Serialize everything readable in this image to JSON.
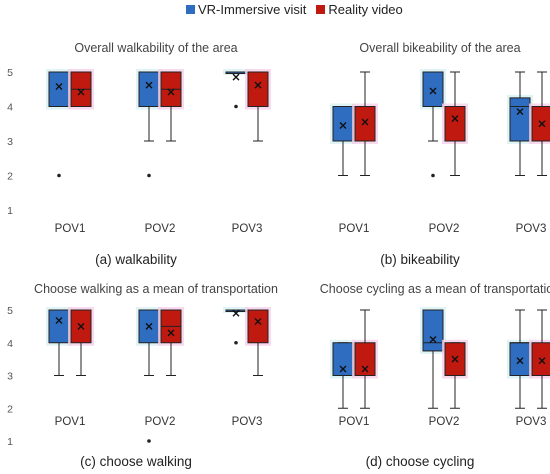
{
  "legend": {
    "series_a": "VR-Immersive visit",
    "series_b": "Reality video",
    "color_a": "#2e6dc0",
    "color_b": "#c01a10"
  },
  "chart_data": [
    {
      "type": "box",
      "title": "Overall walkability of the area",
      "caption": "(a) walkability",
      "categories": [
        "POV1",
        "POV2",
        "POV3"
      ],
      "ylim": [
        1,
        5
      ],
      "yticks": [
        "1",
        "2",
        "3",
        "4",
        "5"
      ],
      "series": [
        {
          "name": "VR-Immersive visit",
          "boxes": [
            {
              "min": 4,
              "q1": 4,
              "median": 4,
              "q3": 5,
              "max": 5,
              "mean": 4.58,
              "outliers": [
                2
              ]
            },
            {
              "min": 3,
              "q1": 4,
              "median": 4,
              "q3": 5,
              "max": 5,
              "mean": 4.62,
              "outliers": [
                2
              ]
            },
            {
              "min": 5,
              "q1": 5,
              "median": 5,
              "q3": 5,
              "max": 5,
              "mean": 4.85,
              "outliers": [
                4
              ]
            }
          ]
        },
        {
          "name": "Reality video",
          "boxes": [
            {
              "min": 4,
              "q1": 4,
              "median": 4.5,
              "q3": 5,
              "max": 5,
              "mean": 4.42,
              "outliers": []
            },
            {
              "min": 3,
              "q1": 4,
              "median": 4.5,
              "q3": 5,
              "max": 5,
              "mean": 4.42,
              "outliers": []
            },
            {
              "min": 3,
              "q1": 4,
              "median": 5,
              "q3": 5,
              "max": 5,
              "mean": 4.62,
              "outliers": []
            }
          ]
        }
      ]
    },
    {
      "type": "box",
      "title": "Overall bikeability of the area",
      "caption": "(b) bikeability",
      "categories": [
        "POV1",
        "POV2",
        "POV3"
      ],
      "ylim": [
        1,
        5
      ],
      "yticks": [],
      "series": [
        {
          "name": "VR-Immersive visit",
          "boxes": [
            {
              "min": 2,
              "q1": 3,
              "median": 4,
              "q3": 4,
              "max": 4,
              "mean": 3.45,
              "outliers": []
            },
            {
              "min": 3,
              "q1": 4,
              "median": 5,
              "q3": 5,
              "max": 5,
              "mean": 4.45,
              "outliers": [
                2
              ]
            },
            {
              "min": 2,
              "q1": 3,
              "median": 4,
              "q3": 4.25,
              "max": 5,
              "mean": 3.85,
              "outliers": []
            }
          ]
        },
        {
          "name": "Reality video",
          "boxes": [
            {
              "min": 2,
              "q1": 3,
              "median": 4,
              "q3": 4,
              "max": 5,
              "mean": 3.55,
              "outliers": []
            },
            {
              "min": 2,
              "q1": 3,
              "median": 3,
              "q3": 4,
              "max": 5,
              "mean": 3.65,
              "outliers": []
            },
            {
              "min": 2,
              "q1": 3,
              "median": 3,
              "q3": 4,
              "max": 5,
              "mean": 3.5,
              "outliers": []
            }
          ]
        }
      ]
    },
    {
      "type": "box",
      "title": "Choose walking as a mean of transportation",
      "caption": "(c) choose walking",
      "categories": [
        "POV1",
        "POV2",
        "POV3"
      ],
      "ylim": [
        1,
        5
      ],
      "yticks": [
        "1",
        "2",
        "3",
        "4",
        "5"
      ],
      "series": [
        {
          "name": "VR-Immersive visit",
          "boxes": [
            {
              "min": 3,
              "q1": 4,
              "median": 5,
              "q3": 5,
              "max": 5,
              "mean": 4.68,
              "outliers": []
            },
            {
              "min": 3,
              "q1": 4,
              "median": 5,
              "q3": 5,
              "max": 5,
              "mean": 4.5,
              "outliers": [
                1
              ]
            },
            {
              "min": 5,
              "q1": 5,
              "median": 5,
              "q3": 5,
              "max": 5,
              "mean": 4.9,
              "outliers": [
                4
              ]
            }
          ]
        },
        {
          "name": "Reality video",
          "boxes": [
            {
              "min": 3,
              "q1": 4,
              "median": 5,
              "q3": 5,
              "max": 5,
              "mean": 4.5,
              "outliers": []
            },
            {
              "min": 3,
              "q1": 4,
              "median": 4.5,
              "q3": 5,
              "max": 5,
              "mean": 4.3,
              "outliers": []
            },
            {
              "min": 3,
              "q1": 4,
              "median": 5,
              "q3": 5,
              "max": 5,
              "mean": 4.65,
              "outliers": []
            }
          ]
        }
      ]
    },
    {
      "type": "box",
      "title": "Choose cycling as a mean of transportation",
      "caption": "(d) choose cycling",
      "categories": [
        "POV1",
        "POV2",
        "POV3"
      ],
      "ylim": [
        1,
        5
      ],
      "yticks": [],
      "series": [
        {
          "name": "VR-Immersive visit",
          "boxes": [
            {
              "min": 2,
              "q1": 3,
              "median": 3,
              "q3": 4,
              "max": 4,
              "mean": 3.2,
              "outliers": []
            },
            {
              "min": 2,
              "q1": 3.75,
              "median": 4,
              "q3": 5,
              "max": 5,
              "mean": 4.1,
              "outliers": []
            },
            {
              "min": 2,
              "q1": 3,
              "median": 4,
              "q3": 4,
              "max": 5,
              "mean": 3.45,
              "outliers": []
            }
          ]
        },
        {
          "name": "Reality video",
          "boxes": [
            {
              "min": 2,
              "q1": 3,
              "median": 3,
              "q3": 4,
              "max": 5,
              "mean": 3.2,
              "outliers": []
            },
            {
              "min": 2,
              "q1": 3,
              "median": 3,
              "q3": 4,
              "max": 4,
              "mean": 3.5,
              "outliers": []
            },
            {
              "min": 2,
              "q1": 3,
              "median": 3,
              "q3": 4,
              "max": 5,
              "mean": 3.45,
              "outliers": []
            }
          ]
        }
      ]
    }
  ]
}
